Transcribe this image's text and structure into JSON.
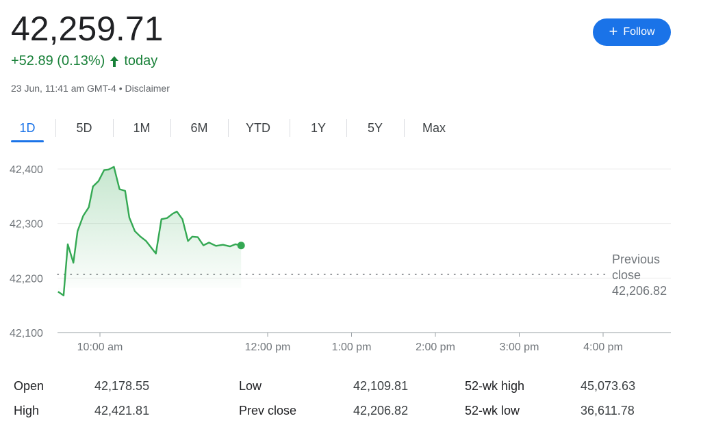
{
  "quote": {
    "price": "42,259.71",
    "change": "+52.89 (0.13%)",
    "change_suffix": "today",
    "timestamp": "23 Jun, 11:41 am GMT-4",
    "separator": "•",
    "disclaimer": "Disclaimer",
    "color_up": "#188038"
  },
  "follow_button": {
    "label": "Follow",
    "icon": "plus-icon",
    "color": "#1a73e8"
  },
  "range_tabs": [
    {
      "label": "1D",
      "active": true
    },
    {
      "label": "5D",
      "active": false
    },
    {
      "label": "1M",
      "active": false
    },
    {
      "label": "6M",
      "active": false
    },
    {
      "label": "YTD",
      "active": false
    },
    {
      "label": "1Y",
      "active": false
    },
    {
      "label": "5Y",
      "active": false
    },
    {
      "label": "Max",
      "active": false
    }
  ],
  "chart_data": {
    "type": "area",
    "y_ticks": [
      "42,400",
      "42,300",
      "42,200",
      "42,100"
    ],
    "ylim": [
      42100,
      42400
    ],
    "x_ticks": [
      "10:00 am",
      "12:00 pm",
      "1:00 pm",
      "2:00 pm",
      "3:00 pm",
      "4:00 pm"
    ],
    "series": [
      {
        "color": "#34a853",
        "x": [
          "9:30",
          "9:34",
          "9:37",
          "9:41",
          "9:44",
          "9:48",
          "9:52",
          "9:55",
          "9:59",
          "10:03",
          "10:06",
          "10:10",
          "10:14",
          "10:18",
          "10:21",
          "10:25",
          "10:29",
          "10:33",
          "10:40",
          "10:44",
          "10:48",
          "10:52",
          "10:55",
          "10:59",
          "11:03",
          "11:06",
          "11:10",
          "11:14",
          "11:18",
          "11:23",
          "11:28",
          "11:33",
          "11:37",
          "11:41"
        ],
        "values": [
          42175,
          42168,
          42262,
          42228,
          42286,
          42314,
          42330,
          42368,
          42378,
          42398,
          42399,
          42404,
          42363,
          42360,
          42311,
          42286,
          42276,
          42268,
          42245,
          42308,
          42310,
          42318,
          42322,
          42308,
          42268,
          42276,
          42275,
          42260,
          42265,
          42259,
          42261,
          42258,
          42262,
          42259.71
        ]
      }
    ],
    "previous_close": 42206.82,
    "previous_close_label": [
      "Previous",
      "close",
      "42,206.82"
    ],
    "grid": true
  },
  "stats": [
    {
      "label": "Open",
      "value": "42,178.55"
    },
    {
      "label": "High",
      "value": "42,421.81"
    },
    {
      "label": "Low",
      "value": "42,109.81"
    },
    {
      "label": "Prev close",
      "value": "42,206.82"
    },
    {
      "label": "52-wk high",
      "value": "45,073.63"
    },
    {
      "label": "52-wk low",
      "value": "36,611.78"
    }
  ]
}
